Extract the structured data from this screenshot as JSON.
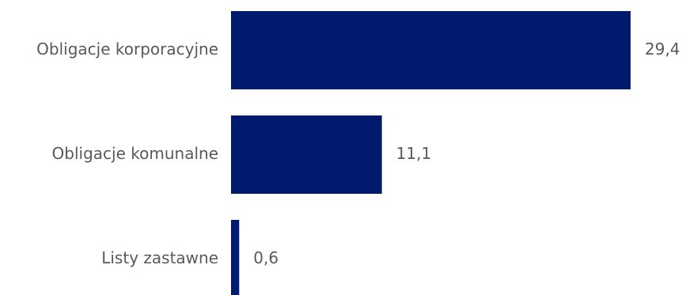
{
  "chart_data": {
    "type": "bar",
    "orientation": "horizontal",
    "categories": [
      "Obligacje korporacyjne",
      "Obligacje komunalne",
      "Listy zastawne"
    ],
    "values": [
      29.4,
      11.1,
      0.6
    ],
    "value_labels": [
      "29,4",
      "11,1",
      "0,6"
    ],
    "bar_color": "#001A6E",
    "label_color": "#595959",
    "xlim": [
      0,
      29.4
    ],
    "grid": false,
    "legend": "none",
    "title": "",
    "xlabel": "",
    "ylabel": ""
  }
}
